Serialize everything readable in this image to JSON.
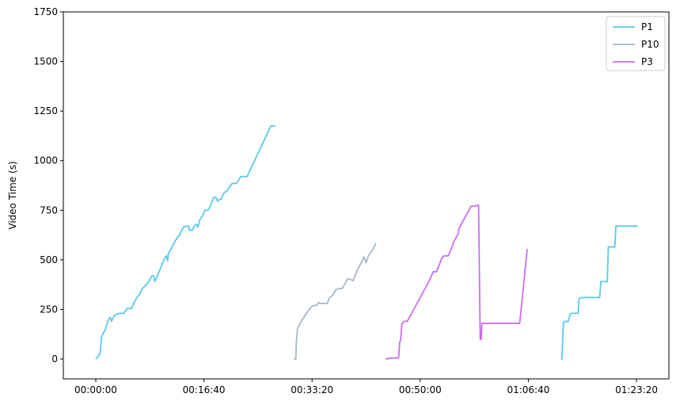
{
  "chart_data": {
    "type": "line",
    "title": "",
    "xlabel": "",
    "ylabel": "Video Time (s)",
    "xlim": [
      -300,
      5300
    ],
    "ylim": [
      -100,
      1750
    ],
    "x_ticks": [
      {
        "value": 0,
        "label": "00:00:00"
      },
      {
        "value": 1000,
        "label": "00:16:40"
      },
      {
        "value": 2000,
        "label": "00:33:20"
      },
      {
        "value": 3000,
        "label": "00:50:00"
      },
      {
        "value": 4000,
        "label": "01:06:40"
      },
      {
        "value": 5000,
        "label": "01:23:20"
      }
    ],
    "y_ticks": [
      0,
      250,
      500,
      750,
      1000,
      1250,
      1500,
      1750
    ],
    "grid": false,
    "legend_position": "top-right",
    "legend": [
      "P1",
      "P10",
      "P3"
    ],
    "series": [
      {
        "name": "P1",
        "color": "#5bc8ee",
        "segments": [
          [
            [
              0,
              0
            ],
            [
              20,
              10
            ],
            [
              40,
              30
            ],
            [
              55,
              115
            ],
            [
              70,
              130
            ],
            [
              90,
              150
            ],
            [
              110,
              190
            ],
            [
              125,
              205
            ],
            [
              135,
              210
            ],
            [
              145,
              190
            ],
            [
              155,
              200
            ],
            [
              170,
              220
            ],
            [
              190,
              225
            ],
            [
              220,
              230
            ],
            [
              260,
              230
            ],
            [
              290,
              255
            ],
            [
              330,
              255
            ],
            [
              360,
              290
            ],
            [
              380,
              310
            ],
            [
              410,
              330
            ],
            [
              430,
              355
            ],
            [
              460,
              370
            ],
            [
              490,
              390
            ],
            [
              520,
              420
            ],
            [
              535,
              420
            ],
            [
              545,
              390
            ],
            [
              570,
              420
            ],
            [
              600,
              460
            ],
            [
              630,
              500
            ],
            [
              650,
              520
            ],
            [
              665,
              495
            ],
            [
              670,
              530
            ],
            [
              700,
              560
            ],
            [
              740,
              600
            ],
            [
              780,
              630
            ],
            [
              810,
              665
            ],
            [
              840,
              670
            ],
            [
              860,
              670
            ],
            [
              865,
              650
            ],
            [
              895,
              650
            ],
            [
              910,
              670
            ],
            [
              930,
              680
            ],
            [
              945,
              665
            ],
            [
              960,
              700
            ],
            [
              990,
              725
            ],
            [
              1010,
              750
            ],
            [
              1040,
              750
            ],
            [
              1060,
              775
            ],
            [
              1080,
              800
            ],
            [
              1090,
              815
            ],
            [
              1110,
              815
            ],
            [
              1130,
              795
            ],
            [
              1140,
              805
            ],
            [
              1160,
              805
            ],
            [
              1170,
              820
            ],
            [
              1190,
              840
            ],
            [
              1210,
              845
            ],
            [
              1240,
              870
            ],
            [
              1260,
              885
            ],
            [
              1300,
              885
            ],
            [
              1320,
              900
            ],
            [
              1340,
              920
            ],
            [
              1400,
              920
            ],
            [
              1420,
              945
            ],
            [
              1620,
              1175
            ],
            [
              1660,
              1175
            ]
          ],
          [
            [
              4300,
              0
            ],
            [
              4310,
              0
            ],
            [
              4325,
              185
            ],
            [
              4340,
              190
            ],
            [
              4370,
              190
            ],
            [
              4385,
              225
            ],
            [
              4400,
              230
            ],
            [
              4460,
              230
            ],
            [
              4470,
              305
            ],
            [
              4500,
              310
            ],
            [
              4660,
              310
            ],
            [
              4670,
              390
            ],
            [
              4730,
              390
            ],
            [
              4740,
              565
            ],
            [
              4800,
              565
            ],
            [
              4810,
              670
            ],
            [
              5010,
              670
            ]
          ]
        ]
      },
      {
        "name": "P10",
        "color": "#a4b8c8",
        "segments": [
          [
            [
              1830,
              0
            ],
            [
              1850,
              0
            ],
            [
              1855,
              90
            ],
            [
              1865,
              150
            ],
            [
              1880,
              170
            ],
            [
              1900,
              190
            ],
            [
              1930,
              215
            ],
            [
              1960,
              240
            ],
            [
              1990,
              260
            ],
            [
              2010,
              270
            ],
            [
              2040,
              270
            ],
            [
              2060,
              285
            ],
            [
              2080,
              280
            ],
            [
              2120,
              280
            ],
            [
              2140,
              280
            ],
            [
              2160,
              310
            ],
            [
              2180,
              315
            ],
            [
              2200,
              330
            ],
            [
              2220,
              350
            ],
            [
              2250,
              355
            ],
            [
              2280,
              355
            ],
            [
              2300,
              375
            ],
            [
              2330,
              405
            ],
            [
              2360,
              400
            ],
            [
              2380,
              395
            ],
            [
              2400,
              425
            ],
            [
              2420,
              450
            ],
            [
              2440,
              470
            ],
            [
              2460,
              490
            ],
            [
              2480,
              515
            ],
            [
              2500,
              485
            ],
            [
              2520,
              520
            ],
            [
              2540,
              535
            ],
            [
              2570,
              560
            ],
            [
              2590,
              585
            ]
          ]
        ]
      },
      {
        "name": "P3",
        "color": "#c96ef2",
        "segments": [
          [
            [
              2680,
              0
            ],
            [
              2730,
              5
            ],
            [
              2780,
              5
            ],
            [
              2800,
              5
            ],
            [
              2810,
              80
            ],
            [
              2820,
              100
            ],
            [
              2830,
              175
            ],
            [
              2850,
              190
            ],
            [
              2880,
              190
            ],
            [
              2920,
              230
            ],
            [
              3000,
              310
            ],
            [
              3080,
              390
            ],
            [
              3120,
              440
            ],
            [
              3150,
              440
            ],
            [
              3180,
              480
            ],
            [
              3200,
              510
            ],
            [
              3220,
              520
            ],
            [
              3260,
              520
            ],
            [
              3290,
              560
            ],
            [
              3310,
              590
            ],
            [
              3330,
              610
            ],
            [
              3350,
              630
            ],
            [
              3360,
              660
            ],
            [
              3380,
              680
            ],
            [
              3410,
              710
            ],
            [
              3440,
              740
            ],
            [
              3470,
              770
            ],
            [
              3500,
              770
            ],
            [
              3520,
              775
            ],
            [
              3540,
              775
            ],
            [
              3555,
              100
            ],
            [
              3565,
              100
            ],
            [
              3570,
              180
            ],
            [
              3600,
              180
            ],
            [
              3690,
              180
            ],
            [
              3900,
              180
            ],
            [
              3920,
              180
            ],
            [
              3950,
              340
            ],
            [
              3970,
              450
            ],
            [
              3990,
              555
            ]
          ]
        ]
      }
    ]
  }
}
